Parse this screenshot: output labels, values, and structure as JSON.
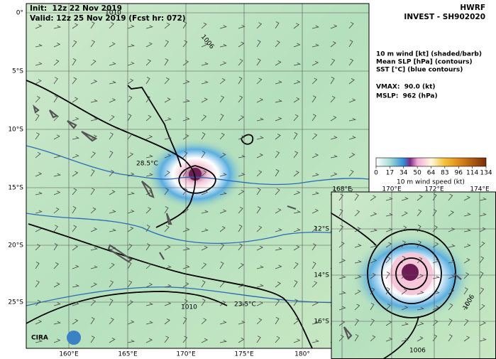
{
  "header": {
    "init": "Init:  12z 22 Nov 2019",
    "valid": "Valid: 12z 25 Nov 2019 (Fcst hr: 072)",
    "model": "HWRF",
    "storm": "INVEST - SH902020"
  },
  "legend": {
    "fields": [
      "10 m wind [kt] (shaded/barb)",
      "Mean SLP [hPa] (contours)",
      "SST [°C] (blue contours)"
    ],
    "vmax": "VMAX:  90.0 (kt)",
    "mslp": "MSLP:  962 (hPa)"
  },
  "colorbar": {
    "ticks": [
      0,
      17,
      34,
      50,
      64,
      83,
      96,
      114,
      134
    ],
    "label": "10 m wind speed (kt)"
  },
  "main_map": {
    "lat_labels": [
      "0°",
      "5°S",
      "10°S",
      "15°S",
      "20°S",
      "25°S"
    ],
    "lon_labels": [
      "160°E",
      "165°E",
      "170°E",
      "175°E",
      "180°"
    ],
    "contour_labels": [
      "1006",
      "1010",
      "28.5°C",
      "23.5°C",
      "1010"
    ]
  },
  "inset_map": {
    "lon_labels": [
      "168°E",
      "170°E",
      "172°E",
      "174°E"
    ],
    "lat_labels": [
      "12°S",
      "14°S",
      "16°S"
    ],
    "contour_labels": [
      "1006",
      "1006"
    ]
  },
  "logo": "CIRA"
}
